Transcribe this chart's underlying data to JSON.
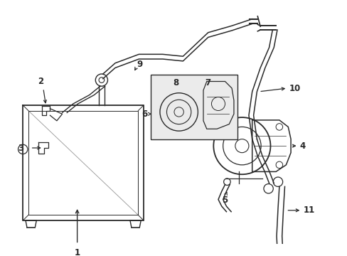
{
  "bg_color": "#ffffff",
  "line_color": "#2a2a2a",
  "fig_w": 4.89,
  "fig_h": 3.6,
  "dpi": 100
}
